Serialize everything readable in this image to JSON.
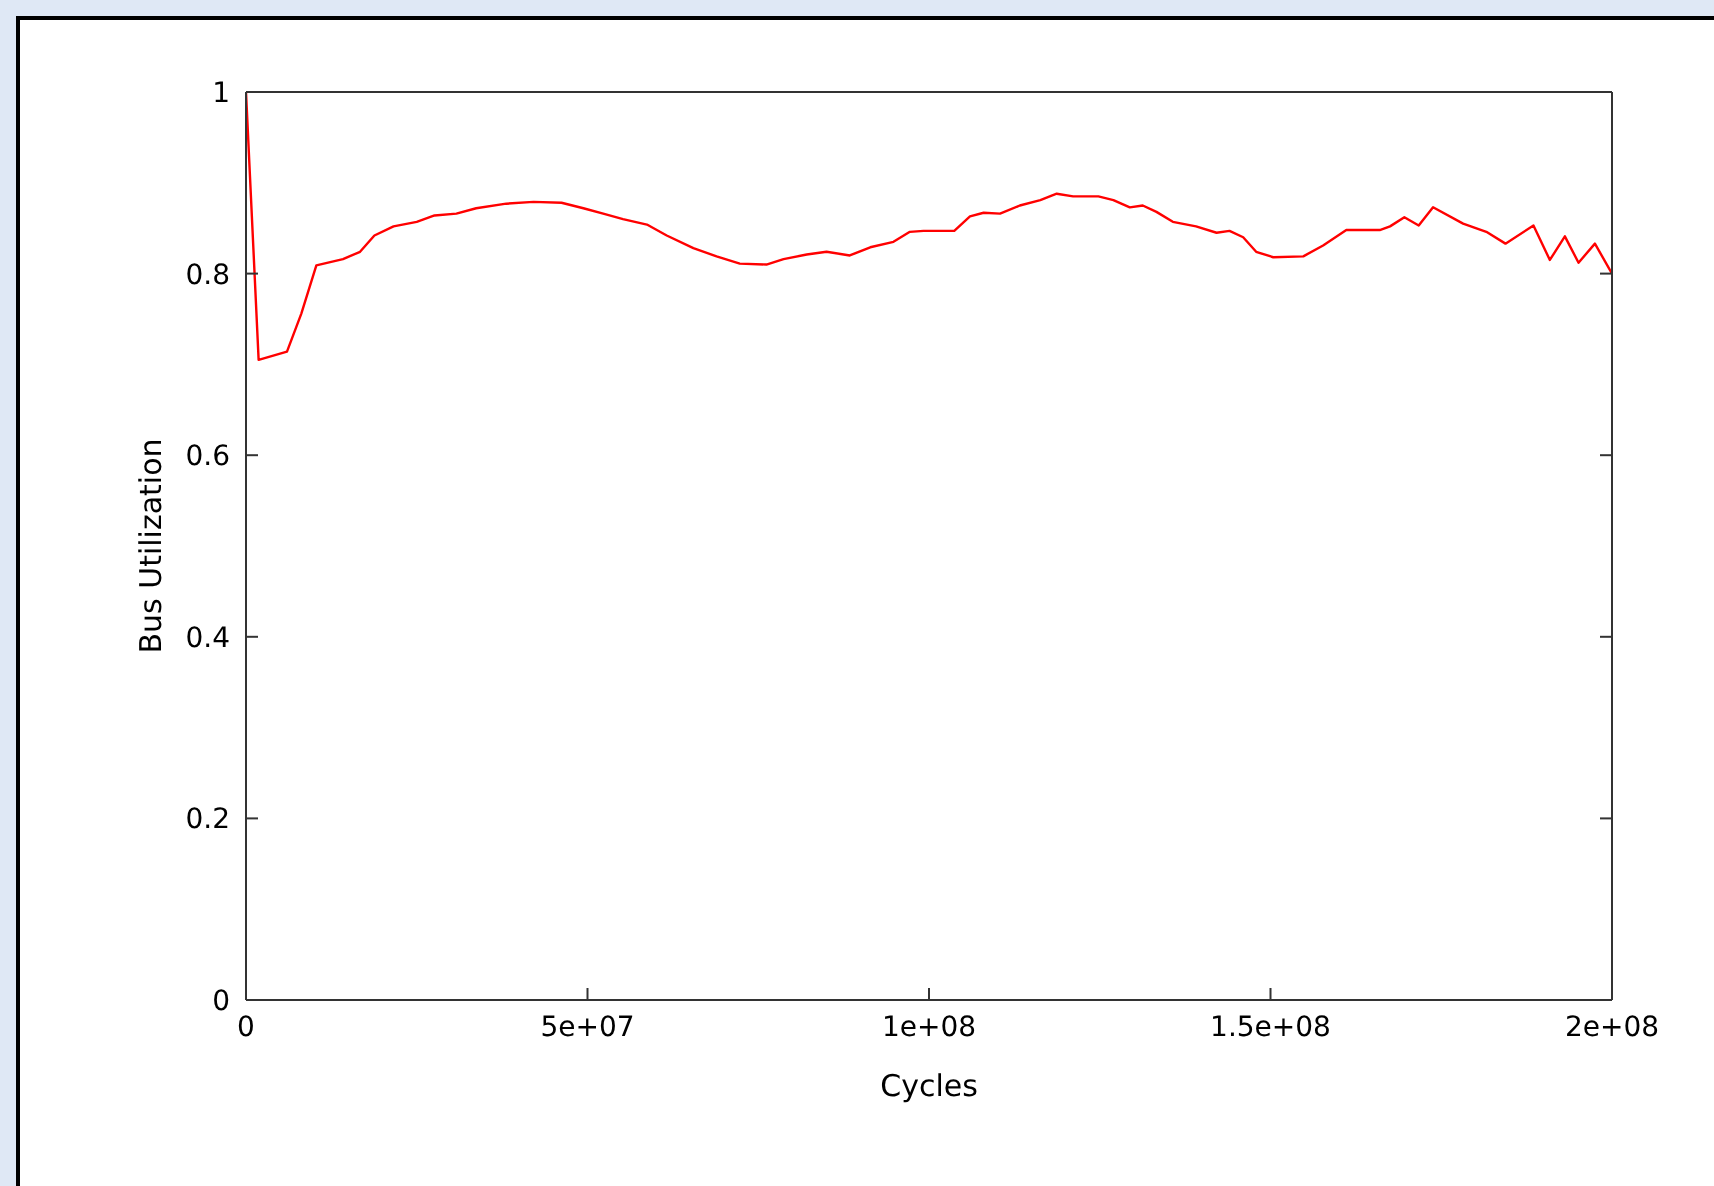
{
  "chart_data": {
    "type": "line",
    "xlabel": "Cycles",
    "ylabel": "Bus Utilization",
    "x": [
      0,
      1850000,
      6000000,
      8100000,
      10300000,
      14200000,
      16700000,
      18800000,
      21600000,
      25000000,
      27600000,
      30800000,
      33700000,
      38100000,
      42100000,
      46200000,
      49400000,
      52300000,
      55200000,
      58700000,
      61600000,
      65500000,
      68900000,
      72300000,
      76200000,
      78700000,
      82100000,
      85000000,
      88400000,
      91400000,
      94800000,
      97200000,
      99200000,
      103700000,
      106000000,
      108000000,
      110400000,
      113300000,
      116300000,
      118700000,
      121100000,
      124800000,
      127000000,
      129400000,
      131300000,
      133300000,
      135700000,
      139100000,
      142100000,
      144000000,
      146000000,
      147900000,
      150400000,
      154800000,
      157700000,
      161100000,
      166000000,
      167500000,
      169600000,
      171700000,
      173800000,
      178200000,
      181600000,
      184400000,
      188500000,
      190900000,
      193100000,
      195100000,
      197500000,
      200000000
    ],
    "series": [
      {
        "color": "#ff0000",
        "values": [
          1.0,
          0.705,
          0.714,
          0.756,
          0.809,
          0.816,
          0.824,
          0.842,
          0.852,
          0.857,
          0.864,
          0.866,
          0.872,
          0.877,
          0.879,
          0.878,
          0.872,
          0.866,
          0.86,
          0.854,
          0.842,
          0.828,
          0.819,
          0.811,
          0.81,
          0.816,
          0.821,
          0.824,
          0.82,
          0.829,
          0.835,
          0.846,
          0.847,
          0.847,
          0.863,
          0.867,
          0.866,
          0.875,
          0.881,
          0.888,
          0.885,
          0.885,
          0.881,
          0.873,
          0.875,
          0.868,
          0.857,
          0.852,
          0.845,
          0.847,
          0.84,
          0.824,
          0.818,
          0.819,
          0.831,
          0.848,
          0.848,
          0.852,
          0.862,
          0.853,
          0.873,
          0.855,
          0.846,
          0.833,
          0.853,
          0.815,
          0.841,
          0.812,
          0.833,
          0.8
        ]
      }
    ],
    "xlim": [
      0,
      200000000
    ],
    "xticks": [
      0,
      {
        "value": 50000000,
        "label": "5e+07"
      },
      {
        "value": 100000000,
        "label": "1e+08"
      },
      {
        "value": 150000000,
        "label": "1.5e+08"
      },
      {
        "value": 200000000,
        "label": "2e+08"
      }
    ],
    "ylim": [
      0,
      1
    ],
    "yticks": [
      0,
      0.2,
      0.4,
      0.6,
      0.8,
      1
    ],
    "grid": false,
    "legend": false,
    "marker": "none",
    "line_style": "solid"
  }
}
